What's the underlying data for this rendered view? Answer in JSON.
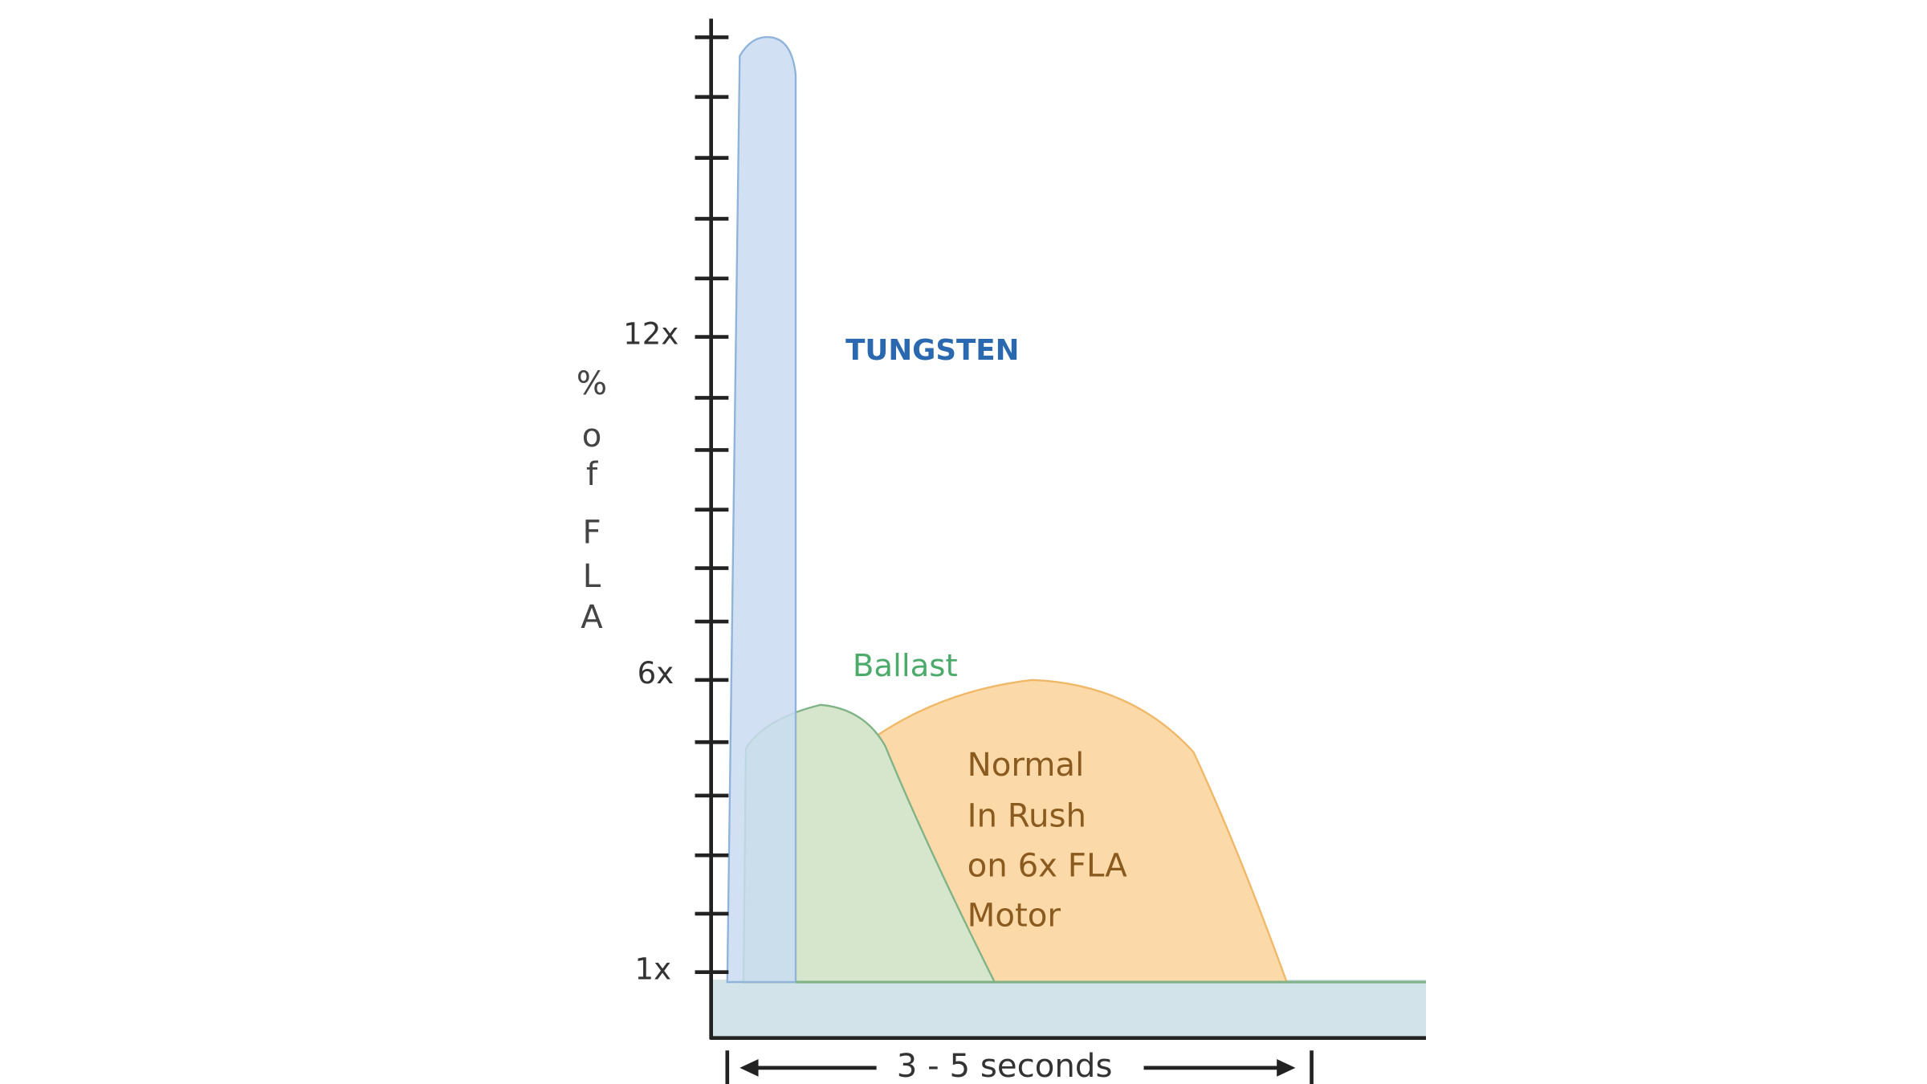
{
  "diagram": {
    "y_axis": {
      "ticks": [
        "12x",
        "6x",
        "1x"
      ],
      "label_letters": [
        "%",
        "o",
        "f",
        "F",
        "L",
        "A"
      ]
    },
    "x_axis": {
      "label": "3 - 5 seconds"
    },
    "curves": {
      "tungsten": "TUNGSTEN",
      "ballast": "Ballast",
      "motor": [
        "Normal",
        "In Rush",
        "on 6x FLA",
        "Motor"
      ]
    }
  }
}
